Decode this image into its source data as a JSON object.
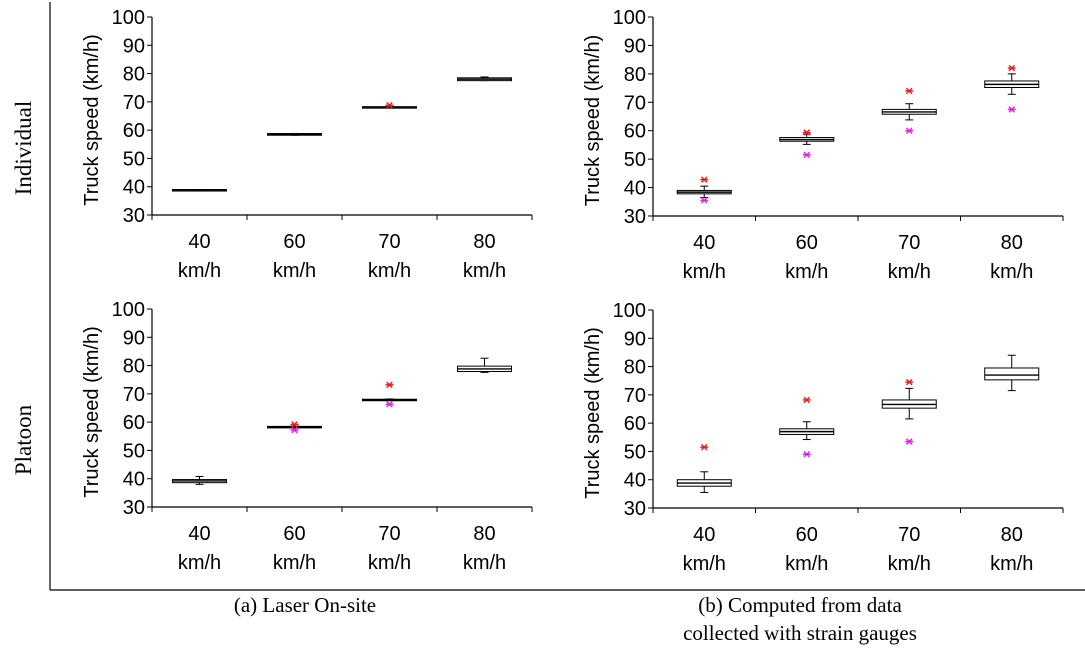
{
  "figure": {
    "row_labels": [
      "Individual",
      "Platoon"
    ],
    "captions": {
      "a": "(a) Laser On-site",
      "b_line1": "(b) Computed from data",
      "b_line2": "collected with strain gauges"
    }
  },
  "colors": {
    "axis": "#000000",
    "box_fill": "#ffffff",
    "median": "#000000",
    "outlier_high": "#e0201c",
    "outlier_low": "#e020e0"
  },
  "chart_data": [
    {
      "type": "box",
      "id": "a_individual",
      "ylabel": "Truck speed (km/h)",
      "ylim": [
        30,
        100
      ],
      "yticks": [
        "30",
        "40",
        "50",
        "60",
        "70",
        "80",
        "90",
        "100"
      ],
      "categories": [
        [
          "40",
          "km/h"
        ],
        [
          "60",
          "km/h"
        ],
        [
          "70",
          "km/h"
        ],
        [
          "80",
          "km/h"
        ]
      ],
      "boxes": [
        {
          "min": 38.8,
          "q1": 38.8,
          "median": 38.9,
          "q3": 39.0,
          "max": 39.0,
          "outliers_high": [],
          "outliers_low": []
        },
        {
          "min": 58.2,
          "q1": 58.2,
          "median": 58.5,
          "q3": 58.8,
          "max": 58.8,
          "outliers_high": [],
          "outliers_low": []
        },
        {
          "min": 67.9,
          "q1": 67.9,
          "median": 68.1,
          "q3": 68.3,
          "max": 68.3,
          "outliers_high": [
            68.8
          ],
          "outliers_low": []
        },
        {
          "min": 77.5,
          "q1": 77.5,
          "median": 78.0,
          "q3": 78.5,
          "max": 78.8,
          "outliers_high": [],
          "outliers_low": []
        }
      ]
    },
    {
      "type": "box",
      "id": "b_individual",
      "ylabel": "Truck speed (km/h)",
      "ylim": [
        30,
        100
      ],
      "yticks": [
        "30",
        "40",
        "50",
        "60",
        "70",
        "80",
        "90",
        "100"
      ],
      "categories": [
        [
          "40",
          "km/h"
        ],
        [
          "60",
          "km/h"
        ],
        [
          "70",
          "km/h"
        ],
        [
          "80",
          "km/h"
        ]
      ],
      "boxes": [
        {
          "min": 36.5,
          "q1": 37.8,
          "median": 38.4,
          "q3": 39.0,
          "max": 40.5,
          "outliers_high": [
            42.8
          ],
          "outliers_low": [
            35.5
          ]
        },
        {
          "min": 55.2,
          "q1": 56.3,
          "median": 56.9,
          "q3": 57.6,
          "max": 58.8,
          "outliers_high": [
            59.4
          ],
          "outliers_low": [
            51.5
          ]
        },
        {
          "min": 63.8,
          "q1": 65.8,
          "median": 66.6,
          "q3": 67.5,
          "max": 69.5,
          "outliers_high": [
            74.0
          ],
          "outliers_low": [
            60.0
          ]
        },
        {
          "min": 72.8,
          "q1": 75.2,
          "median": 76.3,
          "q3": 77.5,
          "max": 80.0,
          "outliers_high": [
            82.0
          ],
          "outliers_low": [
            67.5
          ]
        }
      ]
    },
    {
      "type": "box",
      "id": "a_platoon",
      "ylabel": "Truck speed (km/h)",
      "ylim": [
        30,
        100
      ],
      "yticks": [
        "30",
        "40",
        "50",
        "60",
        "70",
        "80",
        "90",
        "100"
      ],
      "categories": [
        [
          "40",
          "km/h"
        ],
        [
          "60",
          "km/h"
        ],
        [
          "70",
          "km/h"
        ],
        [
          "80",
          "km/h"
        ]
      ],
      "boxes": [
        {
          "min": 38.0,
          "q1": 38.6,
          "median": 39.2,
          "q3": 39.7,
          "max": 40.8,
          "outliers_high": [],
          "outliers_low": []
        },
        {
          "min": 57.9,
          "q1": 58.0,
          "median": 58.2,
          "q3": 58.5,
          "max": 58.6,
          "outliers_high": [
            59.2
          ],
          "outliers_low": [
            57.2
          ]
        },
        {
          "min": 67.6,
          "q1": 67.7,
          "median": 67.9,
          "q3": 68.1,
          "max": 68.2,
          "outliers_high": [
            73.2
          ],
          "outliers_low": [
            66.3
          ]
        },
        {
          "min": 77.6,
          "q1": 77.9,
          "median": 78.8,
          "q3": 79.8,
          "max": 82.6,
          "outliers_high": [],
          "outliers_low": []
        }
      ]
    },
    {
      "type": "box",
      "id": "b_platoon",
      "ylabel": "Truck speed (km/h)",
      "ylim": [
        30,
        100
      ],
      "yticks": [
        "30",
        "40",
        "50",
        "60",
        "70",
        "80",
        "90",
        "100"
      ],
      "categories": [
        [
          "40",
          "km/h"
        ],
        [
          "60",
          "km/h"
        ],
        [
          "70",
          "km/h"
        ],
        [
          "80",
          "km/h"
        ]
      ],
      "boxes": [
        {
          "min": 35.5,
          "q1": 37.7,
          "median": 38.8,
          "q3": 40.0,
          "max": 42.8,
          "outliers_high": [
            51.5
          ],
          "outliers_low": []
        },
        {
          "min": 54.2,
          "q1": 56.0,
          "median": 57.0,
          "q3": 58.0,
          "max": 60.5,
          "outliers_high": [
            68.2
          ],
          "outliers_low": [
            49.0
          ]
        },
        {
          "min": 61.5,
          "q1": 65.3,
          "median": 66.6,
          "q3": 68.2,
          "max": 72.3,
          "outliers_high": [
            74.5
          ],
          "outliers_low": [
            53.5
          ]
        },
        {
          "min": 71.5,
          "q1": 75.3,
          "median": 77.0,
          "q3": 79.5,
          "max": 84.0,
          "outliers_high": [],
          "outliers_low": []
        }
      ]
    }
  ]
}
